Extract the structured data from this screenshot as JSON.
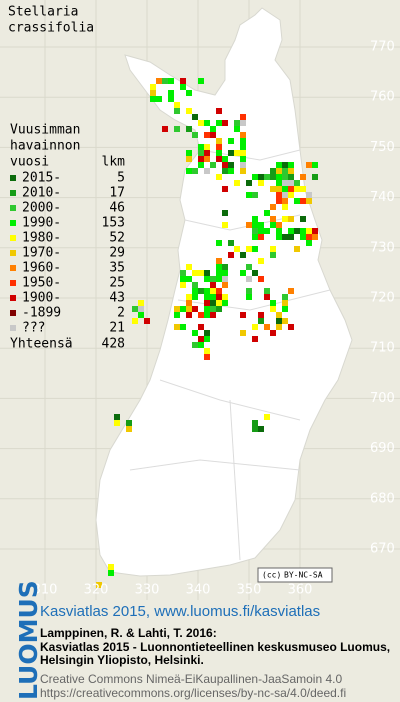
{
  "title": {
    "genus": "Stellaria",
    "species": "crassifolia"
  },
  "legend": {
    "header": [
      "Vuusimman",
      "havainnon",
      "vuosi"
    ],
    "count_header": "lkm",
    "rows": [
      {
        "label": "2015-",
        "count": 5,
        "color": "#0b6b0b"
      },
      {
        "label": "2010-",
        "count": 17,
        "color": "#169c16"
      },
      {
        "label": "2000-",
        "count": 46,
        "color": "#2fc82f"
      },
      {
        "label": "1990-",
        "count": 153,
        "color": "#00ee00"
      },
      {
        "label": "1980-",
        "count": 52,
        "color": "#ffff00"
      },
      {
        "label": "1970-",
        "count": 29,
        "color": "#f0c800"
      },
      {
        "label": "1960-",
        "count": 35,
        "color": "#ff8000"
      },
      {
        "label": "1950-",
        "count": 25,
        "color": "#ff3000"
      },
      {
        "label": "1900-",
        "count": 43,
        "color": "#d00000"
      },
      {
        "label": "-1899",
        "count": 2,
        "color": "#800000"
      },
      {
        "label": "???",
        "count": 21,
        "color": "#c8c8c8"
      }
    ],
    "total_label": "Yhteensä",
    "total": 428
  },
  "map": {
    "yticks": [
      770,
      760,
      750,
      740,
      730,
      720,
      710,
      700,
      690,
      680,
      670
    ],
    "xticks": [
      310,
      320,
      330,
      340,
      350,
      360
    ],
    "cc_badge": "BY-NC-SA"
  },
  "footer": {
    "logo": "LUOMUS",
    "headline": "Kasviatlas 2015, www.luomus.fi/kasviatlas",
    "citation": [
      "Lamppinen, R. & Lahti, T. 2016:",
      "Kasviatlas 2015 - Luonnontieteellinen keskusmuseo Luomus,",
      "Helsingin Yliopisto, Helsinki."
    ],
    "license": [
      "Creative Commons Nimeä-EiKaupallinen-JaaSamoin 4.0",
      "https://creativecommons.org/licenses/by-nc-sa/4.0/deed.fi"
    ]
  }
}
